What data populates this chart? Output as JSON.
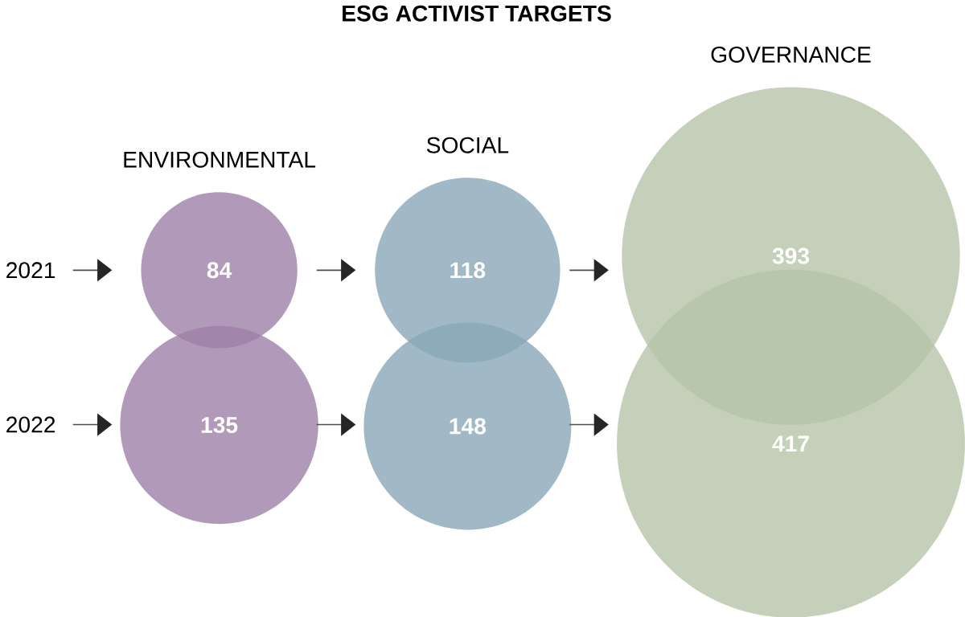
{
  "chart_data": {
    "type": "other",
    "title": "ESG ACTIVIST TARGETS",
    "categories": [
      "2021",
      "2022"
    ],
    "series": [
      {
        "name": "ENVIRONMENTAL",
        "color": "#9d7fa7",
        "values": [
          84,
          135
        ]
      },
      {
        "name": "SOCIAL",
        "color": "#8aa8b8",
        "values": [
          118,
          148
        ]
      },
      {
        "name": "GOVERNANCE",
        "color": "#b5c4a8",
        "values": [
          393,
          417
        ]
      }
    ],
    "data_labels": true
  }
}
